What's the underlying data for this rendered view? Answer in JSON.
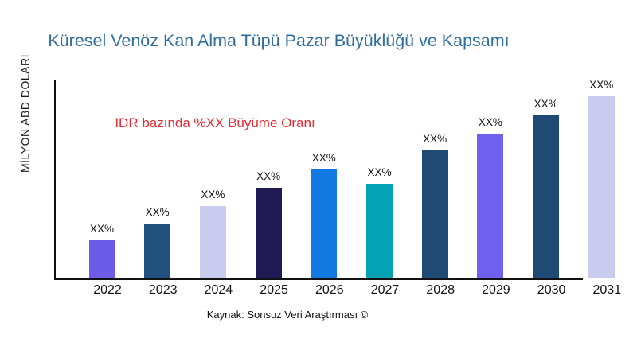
{
  "chart_data": {
    "type": "bar",
    "title": "Küresel Venöz Kan Alma Tüpü Pazar Büyüklüğü ve Kapsamı",
    "title_color": "#2F6D9E",
    "ylabel": "MİLYON ABD DOLARI",
    "xlabel": "",
    "categories": [
      "2022",
      "2023",
      "2024",
      "2025",
      "2026",
      "2027",
      "2028",
      "2029",
      "2030",
      "2031"
    ],
    "bars": [
      {
        "year": "2022",
        "label": "XX%",
        "relative_height": 48,
        "color": "#6C5CE8"
      },
      {
        "year": "2023",
        "label": "XX%",
        "relative_height": 69,
        "color": "#21527F"
      },
      {
        "year": "2024",
        "label": "XX%",
        "relative_height": 91,
        "color": "#C9CCEE"
      },
      {
        "year": "2025",
        "label": "XX%",
        "relative_height": 114,
        "color": "#201A55"
      },
      {
        "year": "2026",
        "label": "XX%",
        "relative_height": 137,
        "color": "#1278E2"
      },
      {
        "year": "2027",
        "label": "XX%",
        "relative_height": 119,
        "color": "#04A2B4"
      },
      {
        "year": "2028",
        "label": "XX%",
        "relative_height": 161,
        "color": "#1E4A73"
      },
      {
        "year": "2029",
        "label": "XX%",
        "relative_height": 182,
        "color": "#6F60EF"
      },
      {
        "year": "2030",
        "label": "XX%",
        "relative_height": 205,
        "color": "#1E4A73"
      },
      {
        "year": "2031",
        "label": "XX%",
        "relative_height": 229,
        "color": "#C9CCEE"
      }
    ],
    "annotation": {
      "text": "IDR bazında %XX Büyüme Oranı",
      "color": "#E62A2F",
      "position": "upper-left"
    },
    "source": "Kaynak: Sonsuz Veri Araştırması ©",
    "axis_color": "#111111",
    "grid": false,
    "legend": false
  }
}
